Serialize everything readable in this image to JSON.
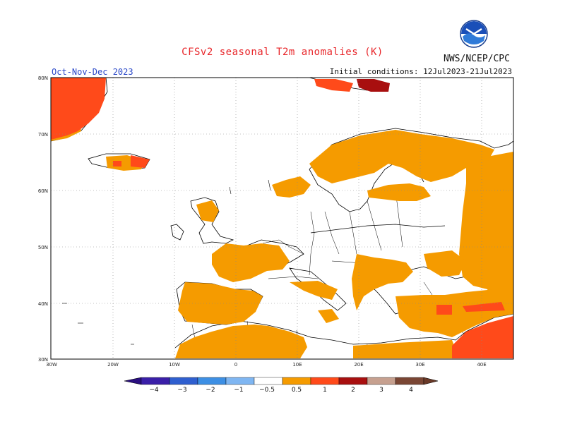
{
  "title": "CFSv2 seasonal T2m anomalies (K)",
  "agency": "NWS/NCEP/CPC",
  "season": "Oct-Nov-Dec 2023",
  "initial_conditions": "Initial conditions: 12Jul2023-21Jul2023",
  "lat_labels": [
    "80N",
    "70N",
    "60N",
    "50N",
    "40N",
    "30N"
  ],
  "lon_labels": [
    "30W",
    "20W",
    "10W",
    "0",
    "10E",
    "20E",
    "30E",
    "40E"
  ],
  "colorbar": {
    "labels": [
      "−4",
      "−3",
      "−2",
      "−1",
      "−0.5",
      "0.5",
      "1",
      "2",
      "3",
      "4"
    ],
    "colors": [
      "#3a1fa8",
      "#2f5fcf",
      "#3d8fe4",
      "#7fb6f2",
      "#ffffff",
      "#f59b00",
      "#ff4a1a",
      "#a80f0f",
      "#c6a08f",
      "#7a4634"
    ]
  },
  "colors": {
    "anomaly_05_1": "#f59b00",
    "anomaly_1_2": "#ff4a1a",
    "anomaly_2_3": "#a80f0f",
    "title": "#e8262a",
    "season": "#2a48c8"
  }
}
